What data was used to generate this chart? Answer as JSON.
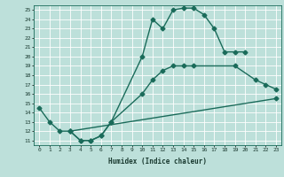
{
  "xlabel": "Humidex (Indice chaleur)",
  "xlim": [
    -0.5,
    23.5
  ],
  "ylim": [
    10.5,
    25.5
  ],
  "xticks": [
    0,
    1,
    2,
    3,
    4,
    5,
    6,
    7,
    8,
    9,
    10,
    11,
    12,
    13,
    14,
    15,
    16,
    17,
    18,
    19,
    20,
    21,
    22,
    23
  ],
  "yticks": [
    11,
    12,
    13,
    14,
    15,
    16,
    17,
    18,
    19,
    20,
    21,
    22,
    23,
    24,
    25
  ],
  "bg_color": "#bde0da",
  "line_color": "#1a6b5a",
  "grid_color": "#ffffff",
  "line1_x": [
    0,
    1,
    2,
    3,
    4,
    5,
    6,
    7,
    10,
    11,
    12,
    13,
    14,
    15,
    16,
    17,
    18,
    19,
    20
  ],
  "line1_y": [
    14.5,
    13,
    12,
    12,
    11,
    11,
    11.5,
    13,
    20,
    24,
    23,
    25,
    25.2,
    25.2,
    24.5,
    23,
    20.5,
    20.5,
    20.5
  ],
  "line2_x": [
    3,
    4,
    5,
    6,
    7,
    10,
    11,
    12,
    13,
    14,
    15,
    19,
    21,
    22,
    23
  ],
  "line2_y": [
    12,
    11,
    11,
    11.5,
    13,
    16,
    17.5,
    18.5,
    19,
    19,
    19,
    19,
    17.5,
    17,
    16.5
  ],
  "line3_x": [
    3,
    23
  ],
  "line3_y": [
    12,
    15.5
  ],
  "marker": "D",
  "markersize": 2.5,
  "linewidth": 1.0
}
